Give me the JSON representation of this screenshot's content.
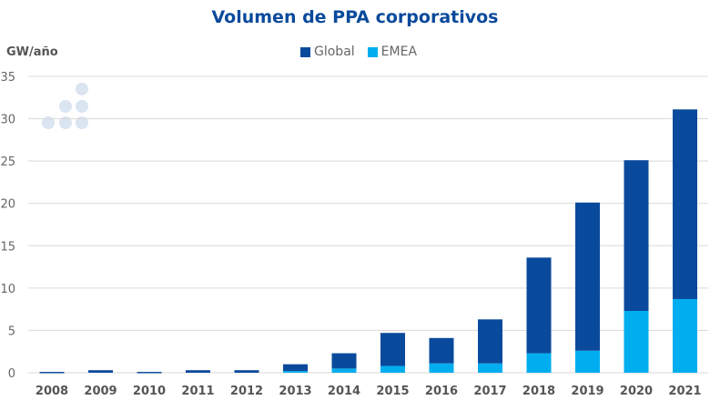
{
  "chart_data": {
    "type": "bar",
    "stacked": true,
    "title": "Volumen de PPA corporativos",
    "ylabel": "GW/año",
    "xlabel": "",
    "ylim": [
      0,
      35
    ],
    "yticks": [
      0,
      5,
      10,
      15,
      20,
      25,
      30,
      35
    ],
    "grid": true,
    "legend_position": "top",
    "categories": [
      "2008",
      "2009",
      "2010",
      "2011",
      "2012",
      "2013",
      "2014",
      "2015",
      "2016",
      "2017",
      "2018",
      "2019",
      "2020",
      "2021"
    ],
    "series": [
      {
        "name": "EMEA",
        "color": "#00aeef",
        "values": [
          0,
          0,
          0,
          0,
          0,
          0.2,
          0.5,
          0.8,
          1.1,
          1.1,
          2.3,
          2.6,
          7.3,
          8.7
        ]
      },
      {
        "name": "Global",
        "color": "#0a4a9c",
        "values": [
          0.1,
          0.3,
          0.1,
          0.3,
          0.3,
          0.8,
          1.8,
          3.9,
          3.0,
          5.2,
          11.3,
          17.5,
          17.8,
          22.4
        ]
      }
    ],
    "totals": [
      0.1,
      0.3,
      0.1,
      0.3,
      0.3,
      1.0,
      2.3,
      4.7,
      4.1,
      6.3,
      13.6,
      20.1,
      25.1,
      31.1
    ]
  }
}
